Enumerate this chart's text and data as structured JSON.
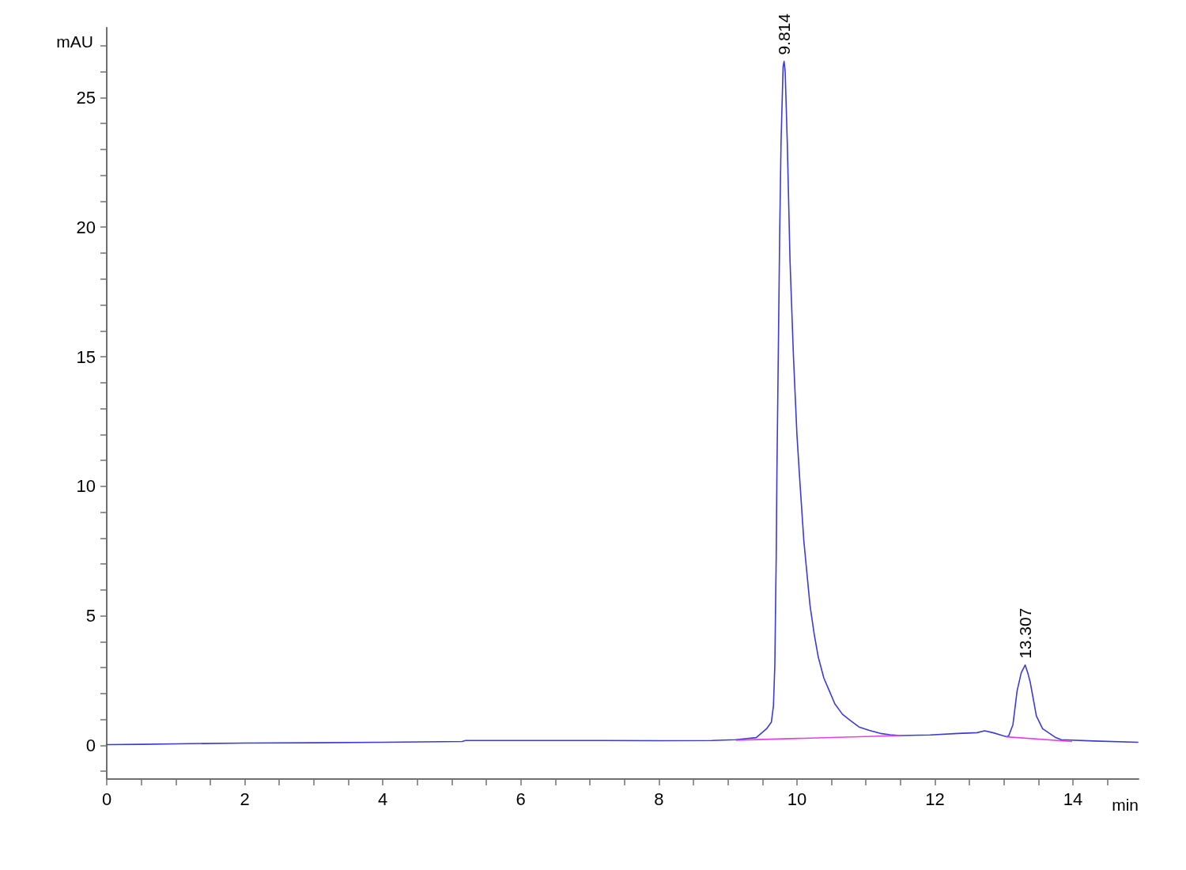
{
  "chart_data": {
    "type": "line",
    "xlabel": "min",
    "ylabel": "mAU",
    "xlim": [
      0,
      14.95
    ],
    "ylim": [
      -1.3,
      27.7
    ],
    "xticks": [
      0,
      {
        "value": 0.5,
        "label": null
      },
      {
        "value": 1,
        "label": null
      },
      {
        "value": 1.5,
        "label": null
      },
      2,
      {
        "value": 2.5,
        "label": null
      },
      {
        "value": 3,
        "label": null
      },
      {
        "value": 3.5,
        "label": null
      },
      4,
      {
        "value": 4.5,
        "label": null
      },
      {
        "value": 5,
        "label": null
      },
      {
        "value": 5.5,
        "label": null
      },
      6,
      {
        "value": 6.5,
        "label": null
      },
      {
        "value": 7,
        "label": null
      },
      {
        "value": 7.5,
        "label": null
      },
      8,
      {
        "value": 8.5,
        "label": null
      },
      {
        "value": 9,
        "label": null
      },
      {
        "value": 9.5,
        "label": null
      },
      10,
      {
        "value": 10.5,
        "label": null
      },
      {
        "value": 11,
        "label": null
      },
      {
        "value": 11.5,
        "label": null
      },
      12,
      {
        "value": 12.5,
        "label": null
      },
      {
        "value": 13,
        "label": null
      },
      {
        "value": 13.5,
        "label": null
      },
      14,
      {
        "value": 14.5,
        "label": null
      }
    ],
    "yticks": [
      {
        "value": -1,
        "label": null
      },
      0,
      {
        "value": 1,
        "label": null
      },
      {
        "value": 2,
        "label": null
      },
      {
        "value": 3,
        "label": null
      },
      {
        "value": 4,
        "label": null
      },
      5,
      {
        "value": 6,
        "label": null
      },
      {
        "value": 7,
        "label": null
      },
      {
        "value": 8,
        "label": null
      },
      {
        "value": 9,
        "label": null
      },
      10,
      {
        "value": 11,
        "label": null
      },
      {
        "value": 12,
        "label": null
      },
      {
        "value": 13,
        "label": null
      },
      {
        "value": 14,
        "label": null
      },
      15,
      {
        "value": 16,
        "label": null
      },
      {
        "value": 17,
        "label": null
      },
      {
        "value": 18,
        "label": null
      },
      {
        "value": 19,
        "label": null
      },
      20,
      {
        "value": 21,
        "label": null
      },
      {
        "value": 22,
        "label": null
      },
      {
        "value": 23,
        "label": null
      },
      {
        "value": 24,
        "label": null
      },
      25,
      {
        "value": 26,
        "label": null
      },
      {
        "value": 27,
        "label": null
      }
    ],
    "series": [
      {
        "color": "#3b3bd6",
        "x": [
          0,
          0.5,
          1,
          2,
          3,
          4,
          5.15,
          5.2,
          6,
          7,
          8,
          8.77,
          9.11,
          9.41,
          9.56,
          9.63,
          9.66,
          9.68,
          9.69,
          9.7,
          9.71,
          9.75,
          9.77,
          9.8,
          9.814,
          9.83,
          9.86,
          9.9,
          9.95,
          10,
          10.04,
          10.1,
          10.15,
          10.19,
          10.25,
          10.31,
          10.39,
          10.47,
          10.55,
          10.66,
          10.78,
          10.9,
          11.05,
          11.21,
          11.35,
          11.5,
          11.93,
          12.33,
          12.61,
          12.72,
          12.84,
          13.04,
          13.07,
          13.13,
          13.19,
          13.25,
          13.307,
          13.35,
          13.38,
          13.47,
          13.56,
          13.75,
          13.83,
          14.3,
          14.94
        ],
        "values": [
          0.03,
          0.04,
          0.06,
          0.09,
          0.1,
          0.12,
          0.15,
          0.19,
          0.19,
          0.19,
          0.18,
          0.19,
          0.22,
          0.3,
          0.64,
          0.9,
          1.53,
          3.1,
          5.2,
          7.3,
          10.5,
          19.7,
          23.3,
          26.2,
          26.4,
          26.0,
          23.3,
          18.7,
          15,
          12,
          10.3,
          7.9,
          6.5,
          5.4,
          4.3,
          3.4,
          2.6,
          2.1,
          1.6,
          1.2,
          0.95,
          0.71,
          0.58,
          0.46,
          0.41,
          0.38,
          0.4,
          0.46,
          0.49,
          0.56,
          0.49,
          0.33,
          0.38,
          0.8,
          2.1,
          2.8,
          3.1,
          2.75,
          2.44,
          1.13,
          0.64,
          0.3,
          0.22,
          0.17,
          0.12
        ]
      },
      {
        "color": "#e83ee8",
        "x": [
          9.12,
          11.5
        ],
        "values": [
          0.2,
          0.38
        ]
      },
      {
        "color": "#e83ee8",
        "x": [
          13.04,
          13.98
        ],
        "values": [
          0.33,
          0.15
        ]
      }
    ],
    "annotations": [
      {
        "text": "9.814",
        "x": 9.814,
        "y": 26.4
      },
      {
        "text": "13.307",
        "x": 13.307,
        "y": 3.1
      }
    ]
  }
}
